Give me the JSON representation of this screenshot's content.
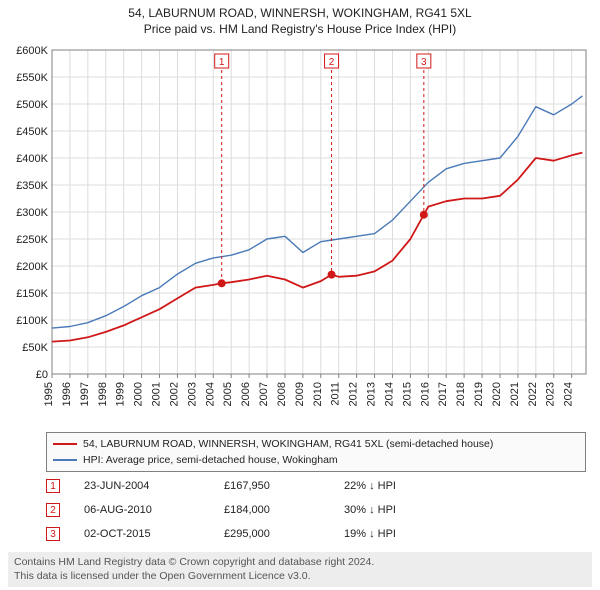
{
  "titles": {
    "line1": "54, LABURNUM ROAD, WINNERSH, WOKINGHAM, RG41 5XL",
    "line2": "Price paid vs. HM Land Registry's House Price Index (HPI)"
  },
  "chart": {
    "type": "line",
    "background_color": "#ffffff",
    "grid_color": "#dcdcdc",
    "axis_color": "#808080",
    "ylabel_prefix": "£",
    "ylim": [
      0,
      600000
    ],
    "ytick_step": 50000,
    "yticks": [
      "£0",
      "£50K",
      "£100K",
      "£150K",
      "£200K",
      "£250K",
      "£300K",
      "£350K",
      "£400K",
      "£450K",
      "£500K",
      "£550K",
      "£600K"
    ],
    "xlim": [
      1995,
      2024.8
    ],
    "xticks": [
      1995,
      1996,
      1997,
      1998,
      1999,
      2000,
      2001,
      2002,
      2003,
      2004,
      2005,
      2006,
      2007,
      2008,
      2009,
      2010,
      2011,
      2012,
      2013,
      2014,
      2015,
      2016,
      2017,
      2018,
      2019,
      2020,
      2021,
      2022,
      2023,
      2024
    ],
    "tick_fontsize": 11,
    "series": [
      {
        "name": "54, LABURNUM ROAD, WINNERSH, WOKINGHAM, RG41 5XL (semi-detached house)",
        "color": "#d01818",
        "line_width": 1.8,
        "x": [
          1995,
          1996,
          1997,
          1998,
          1999,
          2000,
          2001,
          2002,
          2003,
          2004,
          2004.47,
          2005,
          2006,
          2007,
          2008,
          2009,
          2010,
          2010.6,
          2011,
          2012,
          2013,
          2014,
          2015,
          2015.75,
          2016,
          2017,
          2018,
          2019,
          2020,
          2021,
          2022,
          2023,
          2024,
          2024.6
        ],
        "y": [
          60000,
          62000,
          68000,
          78000,
          90000,
          105000,
          120000,
          140000,
          160000,
          165000,
          167950,
          170000,
          175000,
          182000,
          175000,
          160000,
          172000,
          184000,
          180000,
          182000,
          190000,
          210000,
          250000,
          295000,
          310000,
          320000,
          325000,
          325000,
          330000,
          360000,
          400000,
          395000,
          405000,
          410000
        ]
      },
      {
        "name": "HPI: Average price, semi-detached house, Wokingham",
        "color": "#4a7ab8",
        "line_width": 1.4,
        "x": [
          1995,
          1996,
          1997,
          1998,
          1999,
          2000,
          2001,
          2002,
          2003,
          2004,
          2005,
          2006,
          2007,
          2008,
          2009,
          2010,
          2011,
          2012,
          2013,
          2014,
          2015,
          2016,
          2017,
          2018,
          2019,
          2020,
          2021,
          2022,
          2023,
          2024,
          2024.6
        ],
        "y": [
          85000,
          88000,
          95000,
          108000,
          125000,
          145000,
          160000,
          185000,
          205000,
          215000,
          220000,
          230000,
          250000,
          255000,
          225000,
          245000,
          250000,
          255000,
          260000,
          285000,
          320000,
          355000,
          380000,
          390000,
          395000,
          400000,
          440000,
          495000,
          480000,
          500000,
          515000
        ]
      }
    ],
    "sale_markers": [
      {
        "num": "1",
        "x": 2004.47,
        "y": 167950
      },
      {
        "num": "2",
        "x": 2010.6,
        "y": 184000
      },
      {
        "num": "3",
        "x": 2015.75,
        "y": 295000
      }
    ],
    "marker_style": {
      "box_border": "#d01818",
      "box_bg": "#ffffff",
      "box_text": "#d01818",
      "dot_fill": "#d01818",
      "dash_color": "#d01818"
    }
  },
  "legend": {
    "items": [
      {
        "color": "#d01818",
        "label": "54, LABURNUM ROAD, WINNERSH, WOKINGHAM, RG41 5XL (semi-detached house)"
      },
      {
        "color": "#4a7ab8",
        "label": "HPI: Average price, semi-detached house, Wokingham"
      }
    ]
  },
  "sales_table": {
    "rows": [
      {
        "num": "1",
        "date": "23-JUN-2004",
        "price": "£167,950",
        "delta": "22% ↓ HPI"
      },
      {
        "num": "2",
        "date": "06-AUG-2010",
        "price": "£184,000",
        "delta": "30% ↓ HPI"
      },
      {
        "num": "3",
        "date": "02-OCT-2015",
        "price": "£295,000",
        "delta": "19% ↓ HPI"
      }
    ]
  },
  "attribution": {
    "line1": "Contains HM Land Registry data © Crown copyright and database right 2024.",
    "line2": "This data is licensed under the Open Government Licence v3.0."
  }
}
